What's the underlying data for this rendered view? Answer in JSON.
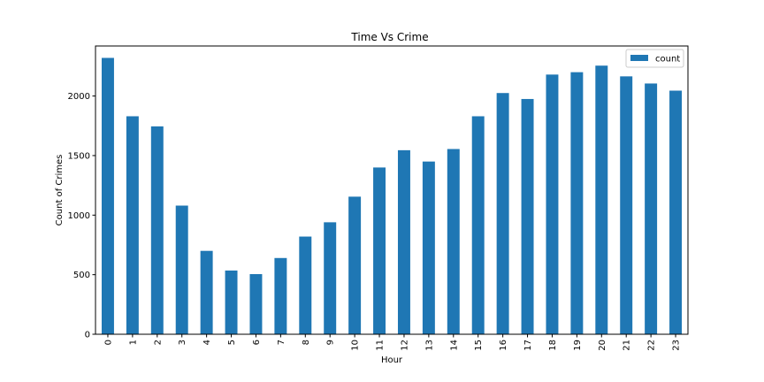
{
  "chart_data": {
    "type": "bar",
    "title": "Time Vs Crime",
    "xlabel": "Hour",
    "ylabel": "Count of Crimes",
    "categories": [
      "0",
      "1",
      "2",
      "3",
      "4",
      "5",
      "6",
      "7",
      "8",
      "9",
      "10",
      "11",
      "12",
      "13",
      "14",
      "15",
      "16",
      "17",
      "18",
      "19",
      "20",
      "21",
      "22",
      "23"
    ],
    "series": [
      {
        "name": "count",
        "color": "#1f77b4",
        "values": [
          2320,
          1830,
          1745,
          1080,
          700,
          535,
          505,
          640,
          820,
          940,
          1155,
          1400,
          1545,
          1450,
          1555,
          1830,
          2025,
          1975,
          2180,
          2200,
          2255,
          2165,
          2105,
          2045
        ]
      }
    ],
    "ylim": [
      0,
      2420
    ],
    "yticks": [
      0,
      500,
      1000,
      1500,
      2000
    ],
    "grid": false,
    "legend_position": "top-right"
  }
}
